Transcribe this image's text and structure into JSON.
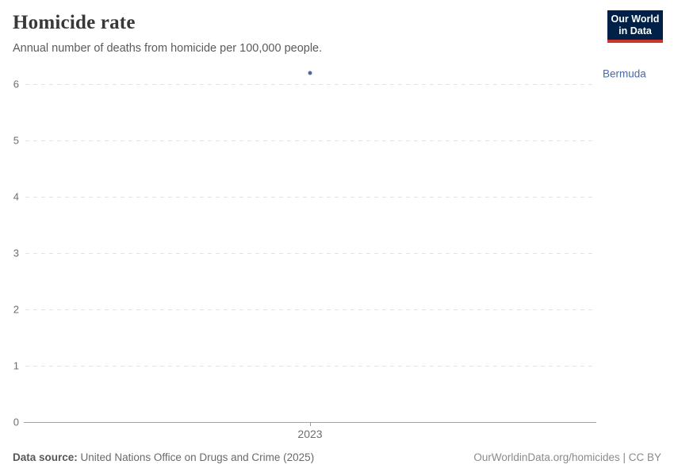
{
  "header": {
    "title": "Homicide rate",
    "subtitle": "Annual number of deaths from homicide per 100,000 people.",
    "logo": {
      "line1": "Our World",
      "line2": "in Data"
    }
  },
  "chart_data": {
    "type": "scatter",
    "title": "Homicide rate",
    "subtitle": "Annual number of deaths from homicide per 100,000 people.",
    "x": [
      2023
    ],
    "series": [
      {
        "name": "Bermuda",
        "values": [
          6.2
        ]
      }
    ],
    "xlabel": "",
    "ylabel": "",
    "ylim": [
      0,
      6
    ],
    "yticks": [
      0,
      1,
      2,
      3,
      4,
      5,
      6
    ],
    "xticks": [
      "2023"
    ],
    "grid": "horizontal-dashed",
    "legend_position": "right-of-point"
  },
  "footer": {
    "source_label": "Data source:",
    "source_text": "United Nations Office on Drugs and Crime (2025)",
    "link_text": "OurWorldinData.org/homicides | CC BY"
  },
  "colors": {
    "entity": "#4a69a3",
    "title": "#383838",
    "subtitle": "#5b5b5b",
    "tick_label": "#6e6e6e",
    "gridline": "#e2e2e2",
    "axis_line": "#a3a3a3",
    "logo_bg": "#002147",
    "logo_red": "#cc352b",
    "footer_text": "#6a6a6a"
  }
}
